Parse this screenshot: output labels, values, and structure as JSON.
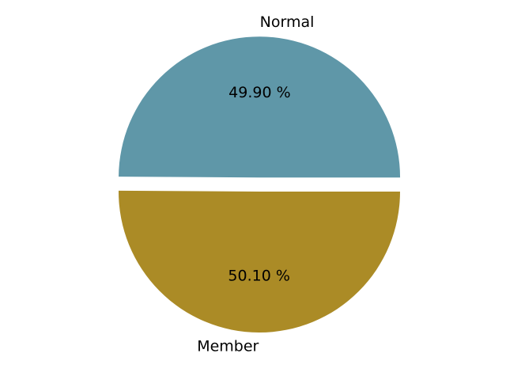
{
  "chart_data": {
    "type": "pie",
    "title": "",
    "slices": [
      {
        "label": "Normal",
        "value": 49.9,
        "display": "49.90 %",
        "color": "#5f97a8",
        "exploded": true
      },
      {
        "label": "Member",
        "value": 50.1,
        "display": "50.10 %",
        "color": "#ab8b26",
        "exploded": false
      }
    ],
    "start_angle_deg": 0,
    "direction": "counterclockwise",
    "legend": "none"
  }
}
